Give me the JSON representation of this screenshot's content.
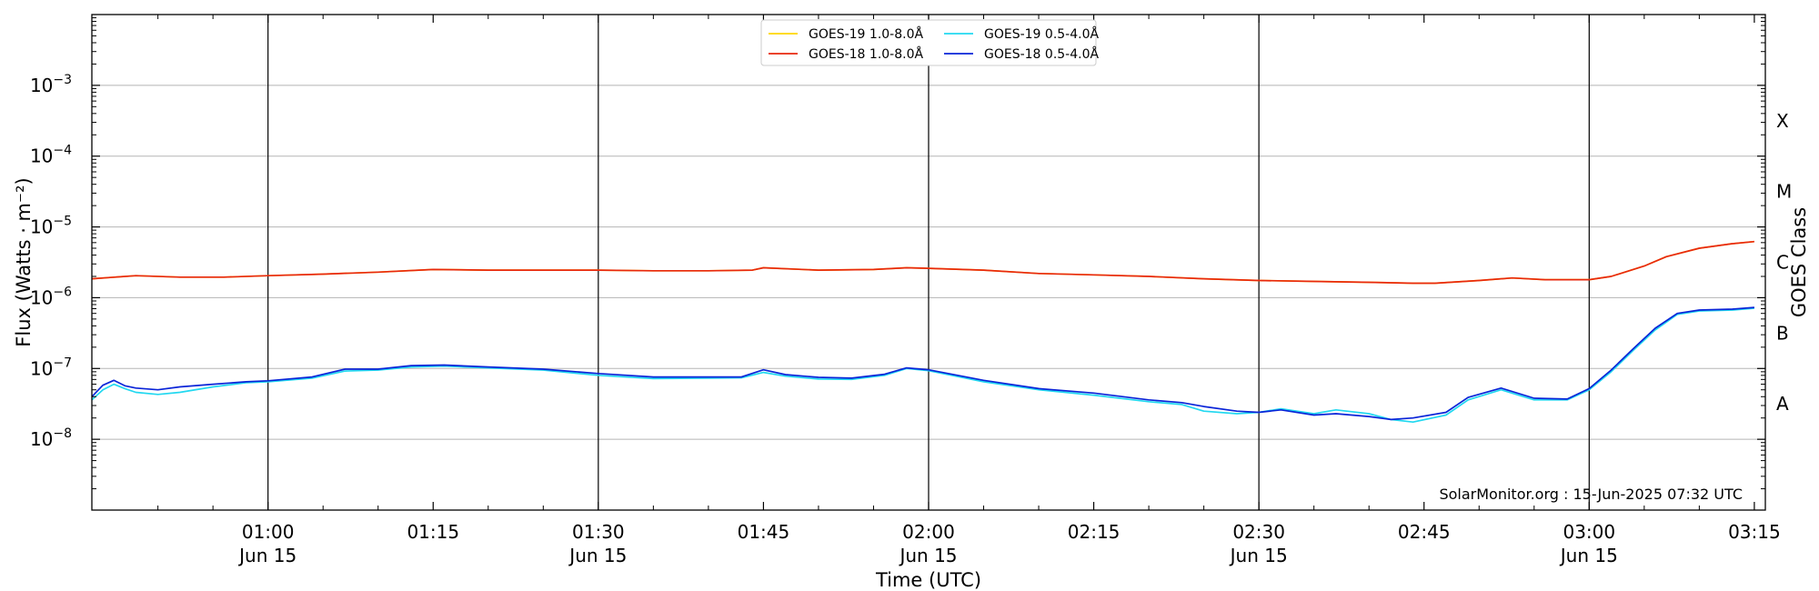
{
  "chart_data": {
    "type": "line",
    "title": "",
    "xlabel": "Time (UTC)",
    "ylabel": "Flux (Watts · m⁻²)",
    "y2label": "GOES Class",
    "yscale": "log",
    "xlim": [
      "00:44",
      "03:16"
    ],
    "ylim": [
      1e-09,
      0.01
    ],
    "grid": "horizontal at each decade",
    "legend_position": "top-center",
    "x_tick_labels": [
      {
        "time": "01:00",
        "label": "01:00",
        "sublabel": "Jun 15"
      },
      {
        "time": "01:15",
        "label": "01:15",
        "sublabel": ""
      },
      {
        "time": "01:30",
        "label": "01:30",
        "sublabel": "Jun 15"
      },
      {
        "time": "01:45",
        "label": "01:45",
        "sublabel": ""
      },
      {
        "time": "02:00",
        "label": "02:00",
        "sublabel": "Jun 15"
      },
      {
        "time": "02:15",
        "label": "02:15",
        "sublabel": ""
      },
      {
        "time": "02:30",
        "label": "02:30",
        "sublabel": "Jun 15"
      },
      {
        "time": "02:45",
        "label": "02:45",
        "sublabel": ""
      },
      {
        "time": "03:00",
        "label": "03:00",
        "sublabel": "Jun 15"
      },
      {
        "time": "03:15",
        "label": "03:15",
        "sublabel": ""
      }
    ],
    "vertical_lines": [
      "01:00",
      "01:30",
      "02:00",
      "02:30",
      "03:00"
    ],
    "y_ticks": [
      {
        "value": 1e-08,
        "base": "10",
        "exp": "−8"
      },
      {
        "value": 1e-07,
        "base": "10",
        "exp": "−7"
      },
      {
        "value": 1e-06,
        "base": "10",
        "exp": "−6"
      },
      {
        "value": 1e-05,
        "base": "10",
        "exp": "−5"
      },
      {
        "value": 0.0001,
        "base": "10",
        "exp": "−4"
      },
      {
        "value": 0.001,
        "base": "10",
        "exp": "−3"
      }
    ],
    "goes_classes": [
      {
        "label": "A",
        "value": 3.16e-08
      },
      {
        "label": "B",
        "value": 3.16e-07
      },
      {
        "label": "C",
        "value": 3.16e-06
      },
      {
        "label": "M",
        "value": 3.16e-05
      },
      {
        "label": "X",
        "value": 0.000316
      }
    ],
    "series": [
      {
        "name": "GOES-19 1.0-8.0Å",
        "color": "#FFD700",
        "points": [
          [
            "00:44",
            1.85e-06
          ],
          [
            "00:48",
            2.05e-06
          ],
          [
            "00:52",
            1.95e-06
          ],
          [
            "00:56",
            1.95e-06
          ],
          [
            "01:00",
            2.05e-06
          ],
          [
            "01:05",
            2.15e-06
          ],
          [
            "01:10",
            2.3e-06
          ],
          [
            "01:15",
            2.5e-06
          ],
          [
            "01:20",
            2.45e-06
          ],
          [
            "01:25",
            2.45e-06
          ],
          [
            "01:30",
            2.45e-06
          ],
          [
            "01:35",
            2.4e-06
          ],
          [
            "01:40",
            2.4e-06
          ],
          [
            "01:44",
            2.45e-06
          ],
          [
            "01:45",
            2.65e-06
          ],
          [
            "01:50",
            2.45e-06
          ],
          [
            "01:55",
            2.5e-06
          ],
          [
            "01:58",
            2.65e-06
          ],
          [
            "02:00",
            2.6e-06
          ],
          [
            "02:05",
            2.45e-06
          ],
          [
            "02:10",
            2.2e-06
          ],
          [
            "02:15",
            2.1e-06
          ],
          [
            "02:20",
            2e-06
          ],
          [
            "02:25",
            1.85e-06
          ],
          [
            "02:30",
            1.75e-06
          ],
          [
            "02:35",
            1.7e-06
          ],
          [
            "02:40",
            1.65e-06
          ],
          [
            "02:44",
            1.6e-06
          ],
          [
            "02:46",
            1.6e-06
          ],
          [
            "02:50",
            1.75e-06
          ],
          [
            "02:53",
            1.9e-06
          ],
          [
            "02:56",
            1.8e-06
          ],
          [
            "03:00",
            1.8e-06
          ],
          [
            "03:02",
            2e-06
          ],
          [
            "03:05",
            2.8e-06
          ],
          [
            "03:07",
            3.8e-06
          ],
          [
            "03:10",
            5e-06
          ],
          [
            "03:13",
            5.8e-06
          ],
          [
            "03:15",
            6.2e-06
          ]
        ]
      },
      {
        "name": "GOES-18 1.0-8.0Å",
        "color": "#E8280E",
        "points": [
          [
            "00:44",
            1.85e-06
          ],
          [
            "00:48",
            2.05e-06
          ],
          [
            "00:52",
            1.95e-06
          ],
          [
            "00:56",
            1.95e-06
          ],
          [
            "01:00",
            2.05e-06
          ],
          [
            "01:05",
            2.15e-06
          ],
          [
            "01:10",
            2.3e-06
          ],
          [
            "01:15",
            2.5e-06
          ],
          [
            "01:20",
            2.45e-06
          ],
          [
            "01:25",
            2.45e-06
          ],
          [
            "01:30",
            2.45e-06
          ],
          [
            "01:35",
            2.4e-06
          ],
          [
            "01:40",
            2.4e-06
          ],
          [
            "01:44",
            2.45e-06
          ],
          [
            "01:45",
            2.65e-06
          ],
          [
            "01:50",
            2.45e-06
          ],
          [
            "01:55",
            2.5e-06
          ],
          [
            "01:58",
            2.65e-06
          ],
          [
            "02:00",
            2.6e-06
          ],
          [
            "02:05",
            2.45e-06
          ],
          [
            "02:10",
            2.2e-06
          ],
          [
            "02:15",
            2.1e-06
          ],
          [
            "02:20",
            2e-06
          ],
          [
            "02:25",
            1.85e-06
          ],
          [
            "02:30",
            1.75e-06
          ],
          [
            "02:35",
            1.7e-06
          ],
          [
            "02:40",
            1.65e-06
          ],
          [
            "02:44",
            1.6e-06
          ],
          [
            "02:46",
            1.6e-06
          ],
          [
            "02:50",
            1.75e-06
          ],
          [
            "02:53",
            1.9e-06
          ],
          [
            "02:56",
            1.8e-06
          ],
          [
            "03:00",
            1.8e-06
          ],
          [
            "03:02",
            2e-06
          ],
          [
            "03:05",
            2.8e-06
          ],
          [
            "03:07",
            3.8e-06
          ],
          [
            "03:10",
            5e-06
          ],
          [
            "03:13",
            5.8e-06
          ],
          [
            "03:15",
            6.2e-06
          ]
        ]
      },
      {
        "name": "GOES-19 0.5-4.0Å",
        "color": "#22D8F0",
        "points": [
          [
            "00:44",
            3.6e-08
          ],
          [
            "00:45",
            5e-08
          ],
          [
            "00:46",
            6e-08
          ],
          [
            "00:47",
            5.2e-08
          ],
          [
            "00:48",
            4.6e-08
          ],
          [
            "00:50",
            4.3e-08
          ],
          [
            "00:52",
            4.6e-08
          ],
          [
            "00:55",
            5.5e-08
          ],
          [
            "00:58",
            6.3e-08
          ],
          [
            "01:00",
            6.5e-08
          ],
          [
            "01:04",
            7.3e-08
          ],
          [
            "01:07",
            9.2e-08
          ],
          [
            "01:10",
            9.5e-08
          ],
          [
            "01:13",
            1.05e-07
          ],
          [
            "01:16",
            1.08e-07
          ],
          [
            "01:20",
            1.02e-07
          ],
          [
            "01:25",
            9.5e-08
          ],
          [
            "01:30",
            8e-08
          ],
          [
            "01:35",
            7.2e-08
          ],
          [
            "01:40",
            7.3e-08
          ],
          [
            "01:43",
            7.4e-08
          ],
          [
            "01:45",
            8.8e-08
          ],
          [
            "01:47",
            7.8e-08
          ],
          [
            "01:50",
            7.1e-08
          ],
          [
            "01:53",
            7e-08
          ],
          [
            "01:56",
            8e-08
          ],
          [
            "01:58",
            1e-07
          ],
          [
            "02:00",
            9.3e-08
          ],
          [
            "02:05",
            6.5e-08
          ],
          [
            "02:10",
            5e-08
          ],
          [
            "02:15",
            4.2e-08
          ],
          [
            "02:20",
            3.4e-08
          ],
          [
            "02:23",
            3.1e-08
          ],
          [
            "02:25",
            2.5e-08
          ],
          [
            "02:28",
            2.3e-08
          ],
          [
            "02:30",
            2.4e-08
          ],
          [
            "02:32",
            2.7e-08
          ],
          [
            "02:35",
            2.3e-08
          ],
          [
            "02:37",
            2.6e-08
          ],
          [
            "02:40",
            2.3e-08
          ],
          [
            "02:42",
            1.9e-08
          ],
          [
            "02:44",
            1.75e-08
          ],
          [
            "02:47",
            2.2e-08
          ],
          [
            "02:49",
            3.6e-08
          ],
          [
            "02:52",
            5e-08
          ],
          [
            "02:55",
            3.6e-08
          ],
          [
            "02:58",
            3.6e-08
          ],
          [
            "03:00",
            5e-08
          ],
          [
            "03:02",
            9e-08
          ],
          [
            "03:04",
            1.8e-07
          ],
          [
            "03:06",
            3.5e-07
          ],
          [
            "03:08",
            5.8e-07
          ],
          [
            "03:10",
            6.5e-07
          ],
          [
            "03:13",
            6.7e-07
          ],
          [
            "03:15",
            7.1e-07
          ]
        ]
      },
      {
        "name": "GOES-18 0.5-4.0Å",
        "color": "#0A24D8",
        "points": [
          [
            "00:44",
            4e-08
          ],
          [
            "00:45",
            5.8e-08
          ],
          [
            "00:46",
            6.8e-08
          ],
          [
            "00:47",
            5.7e-08
          ],
          [
            "00:48",
            5.3e-08
          ],
          [
            "00:50",
            5e-08
          ],
          [
            "00:52",
            5.5e-08
          ],
          [
            "00:55",
            6e-08
          ],
          [
            "00:58",
            6.5e-08
          ],
          [
            "01:00",
            6.7e-08
          ],
          [
            "01:04",
            7.6e-08
          ],
          [
            "01:07",
            9.8e-08
          ],
          [
            "01:10",
            9.8e-08
          ],
          [
            "01:13",
            1.1e-07
          ],
          [
            "01:16",
            1.12e-07
          ],
          [
            "01:20",
            1.05e-07
          ],
          [
            "01:25",
            9.8e-08
          ],
          [
            "01:30",
            8.5e-08
          ],
          [
            "01:35",
            7.6e-08
          ],
          [
            "01:40",
            7.6e-08
          ],
          [
            "01:43",
            7.6e-08
          ],
          [
            "01:45",
            9.6e-08
          ],
          [
            "01:47",
            8.2e-08
          ],
          [
            "01:50",
            7.5e-08
          ],
          [
            "01:53",
            7.3e-08
          ],
          [
            "01:56",
            8.3e-08
          ],
          [
            "01:58",
            1.02e-07
          ],
          [
            "02:00",
            9.6e-08
          ],
          [
            "02:05",
            6.8e-08
          ],
          [
            "02:10",
            5.2e-08
          ],
          [
            "02:15",
            4.5e-08
          ],
          [
            "02:20",
            3.6e-08
          ],
          [
            "02:23",
            3.3e-08
          ],
          [
            "02:25",
            2.9e-08
          ],
          [
            "02:28",
            2.5e-08
          ],
          [
            "02:30",
            2.4e-08
          ],
          [
            "02:32",
            2.6e-08
          ],
          [
            "02:35",
            2.2e-08
          ],
          [
            "02:37",
            2.3e-08
          ],
          [
            "02:40",
            2.1e-08
          ],
          [
            "02:42",
            1.9e-08
          ],
          [
            "02:44",
            2e-08
          ],
          [
            "02:47",
            2.4e-08
          ],
          [
            "02:49",
            3.9e-08
          ],
          [
            "02:52",
            5.3e-08
          ],
          [
            "02:55",
            3.8e-08
          ],
          [
            "02:58",
            3.7e-08
          ],
          [
            "03:00",
            5.2e-08
          ],
          [
            "03:02",
            9.5e-08
          ],
          [
            "03:04",
            1.9e-07
          ],
          [
            "03:06",
            3.7e-07
          ],
          [
            "03:08",
            6e-07
          ],
          [
            "03:10",
            6.7e-07
          ],
          [
            "03:13",
            6.9e-07
          ],
          [
            "03:15",
            7.3e-07
          ]
        ]
      }
    ],
    "credit": "SolarMonitor.org : 15-Jun-2025 07:32 UTC"
  }
}
